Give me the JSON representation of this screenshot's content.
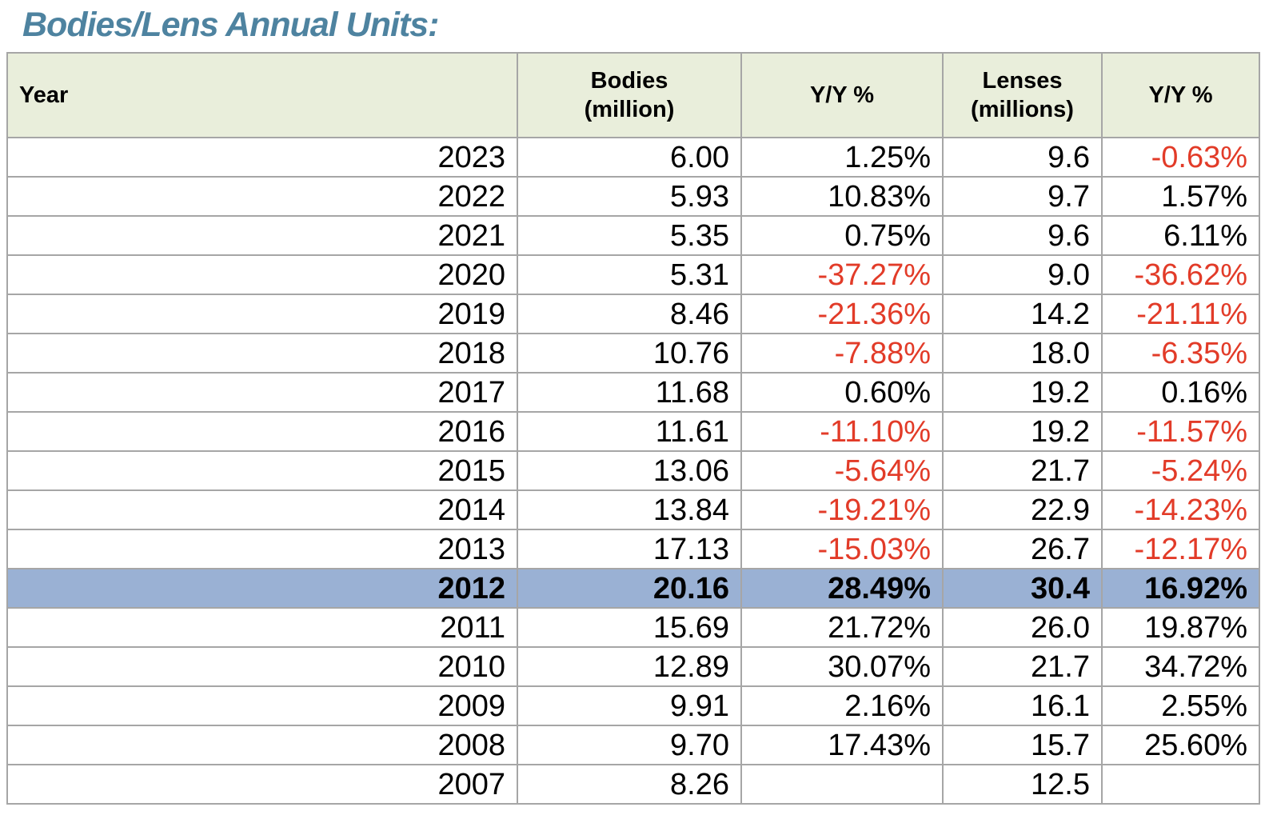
{
  "title": "Bodies/Lens Annual Units:",
  "colors": {
    "title": "#4e83a0",
    "header_bg": "#e9eedb",
    "grid": "#a6a6a6",
    "highlight_bg": "#9ab1d4",
    "negative": "#e23b28",
    "text": "#000000"
  },
  "chart_data": {
    "type": "table",
    "title": "Bodies/Lens Annual Units:",
    "columns": [
      "Year",
      "Bodies\n(million)",
      "Y/Y %",
      "Lenses\n(millions)",
      "Y/Y %"
    ],
    "highlighted_year": "2012",
    "rows": [
      {
        "cells": [
          "2023",
          "6.00",
          "1.25%",
          "9.6",
          "-0.63%"
        ],
        "highlight": false
      },
      {
        "cells": [
          "2022",
          "5.93",
          "10.83%",
          "9.7",
          "1.57%"
        ],
        "highlight": false
      },
      {
        "cells": [
          "2021",
          "5.35",
          "0.75%",
          "9.6",
          "6.11%"
        ],
        "highlight": false
      },
      {
        "cells": [
          "2020",
          "5.31",
          "-37.27%",
          "9.0",
          "-36.62%"
        ],
        "highlight": false
      },
      {
        "cells": [
          "2019",
          "8.46",
          "-21.36%",
          "14.2",
          "-21.11%"
        ],
        "highlight": false
      },
      {
        "cells": [
          "2018",
          "10.76",
          "-7.88%",
          "18.0",
          "-6.35%"
        ],
        "highlight": false
      },
      {
        "cells": [
          "2017",
          "11.68",
          "0.60%",
          "19.2",
          "0.16%"
        ],
        "highlight": false
      },
      {
        "cells": [
          "2016",
          "11.61",
          "-11.10%",
          "19.2",
          "-11.57%"
        ],
        "highlight": false
      },
      {
        "cells": [
          "2015",
          "13.06",
          "-5.64%",
          "21.7",
          "-5.24%"
        ],
        "highlight": false
      },
      {
        "cells": [
          "2014",
          "13.84",
          "-19.21%",
          "22.9",
          "-14.23%"
        ],
        "highlight": false
      },
      {
        "cells": [
          "2013",
          "17.13",
          "-15.03%",
          "26.7",
          "-12.17%"
        ],
        "highlight": false
      },
      {
        "cells": [
          "2012",
          "20.16",
          "28.49%",
          "30.4",
          "16.92%"
        ],
        "highlight": true
      },
      {
        "cells": [
          "2011",
          "15.69",
          "21.72%",
          "26.0",
          "19.87%"
        ],
        "highlight": false
      },
      {
        "cells": [
          "2010",
          "12.89",
          "30.07%",
          "21.7",
          "34.72%"
        ],
        "highlight": false
      },
      {
        "cells": [
          "2009",
          "9.91",
          "2.16%",
          "16.1",
          "2.55%"
        ],
        "highlight": false
      },
      {
        "cells": [
          "2008",
          "9.70",
          "17.43%",
          "15.7",
          "25.60%"
        ],
        "highlight": false
      },
      {
        "cells": [
          "2007",
          "8.26",
          "",
          "12.5",
          ""
        ],
        "highlight": false
      }
    ]
  }
}
